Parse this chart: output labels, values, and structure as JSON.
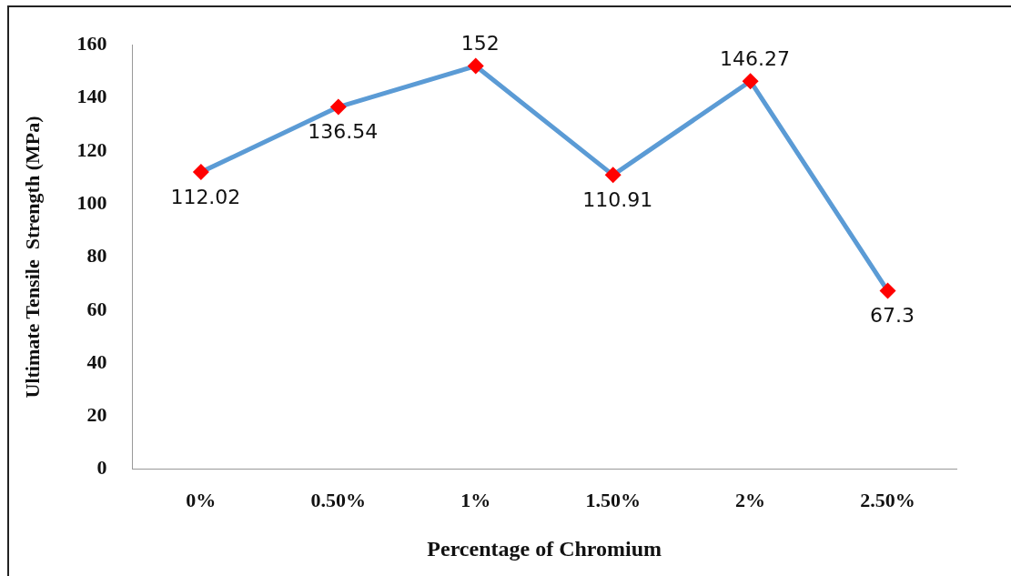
{
  "chart_data": {
    "type": "line",
    "xlabel": "Percentage of Chromium",
    "ylabel": "Ultimate Tensile  Strength (MPa)",
    "categories": [
      "0%",
      "0.50%",
      "1%",
      "1.50%",
      "2%",
      "2.50%"
    ],
    "series": [
      {
        "color": "#5b9bd5",
        "colors": [
          "#ff0000",
          "#ff0000",
          "#ff0000",
          "#ff0000",
          "#ff0000",
          "#ff0000"
        ],
        "values": [
          112.02,
          136.54,
          152,
          110.91,
          146.27,
          67.3
        ]
      }
    ],
    "marker": "diamond",
    "data_labels": true,
    "grid": false,
    "legend": false,
    "ylim": [
      0,
      160
    ],
    "yticks": [
      0,
      20,
      40,
      60,
      80,
      100,
      120,
      140,
      160
    ]
  }
}
